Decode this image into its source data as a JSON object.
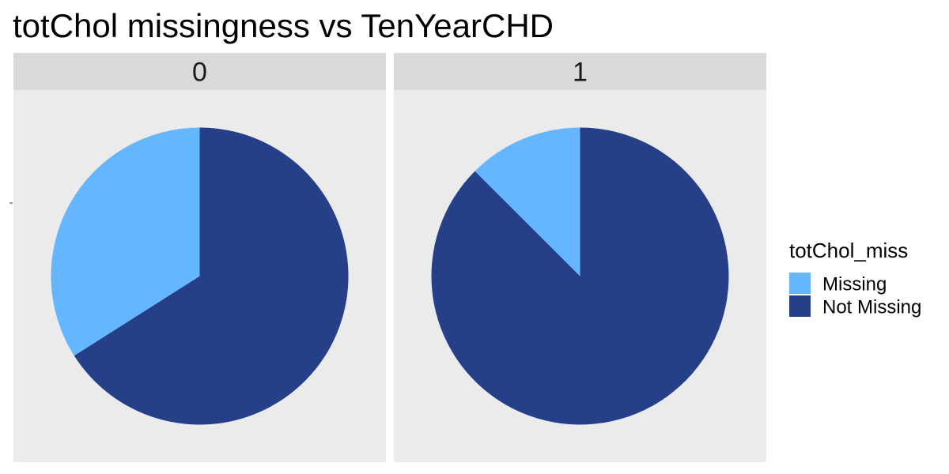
{
  "chart_data": {
    "type": "pie",
    "title": "totChol missingness vs TenYearCHD",
    "facets": [
      {
        "label": "0",
        "slices": [
          {
            "category": "Missing",
            "fraction": 0.34
          },
          {
            "category": "Not Missing",
            "fraction": 0.66
          }
        ]
      },
      {
        "label": "1",
        "slices": [
          {
            "category": "Missing",
            "fraction": 0.125
          },
          {
            "category": "Not Missing",
            "fraction": 0.875
          }
        ]
      }
    ],
    "legend": {
      "title": "totChol_miss",
      "placement": "right",
      "items": [
        {
          "label": "Missing",
          "color": "#64B7FE"
        },
        {
          "label": "Not Missing",
          "color": "#253F89"
        }
      ]
    },
    "colors": {
      "panel_background": "#EBEBEB",
      "strip_background": "#D9D9D9"
    }
  }
}
